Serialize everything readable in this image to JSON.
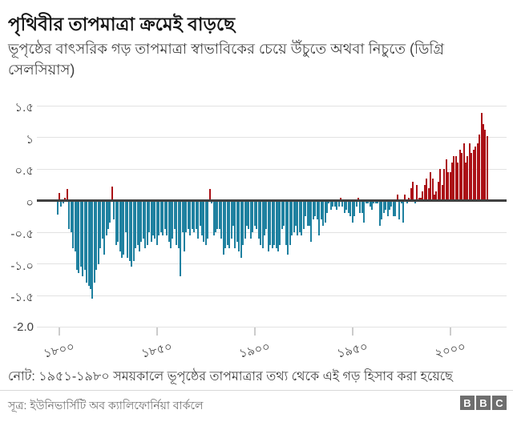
{
  "header": {
    "title": "পৃথিবীর তাপমাত্রা ক্রমেই বাড়ছে",
    "subtitle": "ভূপৃষ্ঠের বাৎসরিক গড় তাপমাত্রা স্বাভাবিকের চেয়ে উঁচুতে অথবা নিচুতে (ডিগ্রি সেলসিয়াস)"
  },
  "chart_data": {
    "type": "bar",
    "title": "পৃথিবীর তাপমাত্রা ক্রমেই বাড়ছে",
    "ylabel": "ডিগ্রি সেলসিয়াস",
    "xlabel": "",
    "ylim": [
      -2.0,
      1.5
    ],
    "xlim": [
      1797,
      2020
    ],
    "grid": true,
    "legend": false,
    "colors": {
      "positive": "#ab1016",
      "negative": "#1f81a0",
      "zero_line": "#404040",
      "gridline": "#e2e2e2"
    },
    "y_axis": {
      "ticks": [
        {
          "label": "১.৫",
          "value": 1.5
        },
        {
          "label": "১",
          "value": 1
        },
        {
          "label": "০.৫",
          "value": 0.5
        },
        {
          "label": "০",
          "value": 0
        },
        {
          "label": "-০.৫",
          "value": -0.5
        },
        {
          "label": "-১.০",
          "value": -1
        },
        {
          "label": "-১.৫",
          "value": -1.5
        },
        {
          "label": "-2.0",
          "value": -2
        }
      ]
    },
    "x_axis": {
      "ticks": [
        {
          "label": "১৮০০",
          "year": 1800
        },
        {
          "label": "১৮৫০",
          "year": 1850
        },
        {
          "label": "১৯০০",
          "year": 1900
        },
        {
          "label": "১৯৫০",
          "year": 1950
        },
        {
          "label": "২০০০",
          "year": 2000
        }
      ]
    },
    "series": [
      {
        "name": "annual-temperature-anomaly-c",
        "start_year": 1799,
        "end_year": 2019,
        "values": [
          -0.22,
          0.12,
          -0.1,
          -0.05,
          0.05,
          0.18,
          -0.45,
          -0.5,
          -0.75,
          -0.8,
          -1.1,
          -1.15,
          -1.05,
          -1.2,
          -1.1,
          -1.3,
          -1.35,
          -1.4,
          -1.55,
          -1.3,
          -1.1,
          -1.0,
          -0.75,
          -0.6,
          -0.85,
          -0.55,
          -0.45,
          -0.35,
          0.22,
          -0.3,
          -0.7,
          -0.65,
          -0.8,
          -0.9,
          -0.85,
          -0.5,
          -0.9,
          -0.95,
          -1.05,
          -0.95,
          -0.75,
          -0.7,
          -0.8,
          -0.65,
          -0.6,
          -0.75,
          -0.7,
          -0.5,
          -0.65,
          -0.55,
          -0.6,
          -0.7,
          -0.55,
          -0.5,
          -0.55,
          -0.45,
          -0.55,
          -0.65,
          -0.75,
          -0.6,
          -0.45,
          -0.7,
          -0.75,
          -1.2,
          -0.5,
          -0.8,
          -0.5,
          -0.45,
          -0.55,
          -0.45,
          -0.5,
          -0.45,
          -0.6,
          -0.4,
          -0.55,
          -0.65,
          -0.7,
          -0.6,
          0.18,
          -0.05,
          -0.55,
          -0.5,
          -0.45,
          -0.45,
          -0.6,
          -0.85,
          -0.75,
          -0.7,
          -0.75,
          -0.6,
          -0.4,
          -0.75,
          -0.65,
          -0.8,
          -0.9,
          -0.7,
          -0.6,
          -0.4,
          -0.45,
          -0.6,
          -0.5,
          -0.4,
          -0.45,
          -0.6,
          -0.7,
          -0.75,
          -0.55,
          -0.45,
          -0.8,
          -0.7,
          -0.75,
          -0.7,
          -0.75,
          -0.8,
          -0.7,
          -0.45,
          -0.4,
          -0.7,
          -0.85,
          -0.7,
          -0.55,
          -0.5,
          -0.4,
          -0.55,
          -0.5,
          -0.55,
          -0.45,
          -0.25,
          -0.4,
          -0.4,
          -0.65,
          -0.3,
          -0.25,
          -0.3,
          -0.55,
          -0.3,
          -0.4,
          -0.35,
          -0.2,
          -0.05,
          -0.15,
          -0.1,
          -0.1,
          -0.15,
          -0.1,
          0.05,
          -0.1,
          -0.2,
          -0.15,
          -0.2,
          -0.25,
          -0.35,
          -0.25,
          -0.1,
          0.05,
          -0.2,
          -0.2,
          -0.35,
          -0.05,
          -0.05,
          -0.1,
          -0.15,
          -0.05,
          -0.05,
          -0.05,
          -0.4,
          -0.3,
          -0.2,
          -0.15,
          -0.25,
          -0.15,
          -0.1,
          -0.25,
          -0.25,
          0.1,
          -0.3,
          -0.05,
          -0.35,
          0.1,
          -0.05,
          0.05,
          0.2,
          0.3,
          -0.05,
          0.25,
          0.05,
          0.05,
          0.15,
          0.25,
          0.35,
          0.2,
          0.45,
          0.35,
          0.1,
          0.15,
          0.3,
          0.5,
          0.25,
          0.5,
          0.65,
          0.45,
          0.45,
          0.6,
          0.7,
          0.7,
          0.6,
          0.8,
          0.75,
          0.9,
          0.6,
          0.7,
          0.9,
          0.75,
          0.8,
          0.85,
          0.9,
          1.05,
          1.38,
          1.21,
          1.12,
          1.02
        ]
      }
    ]
  },
  "footer": {
    "note": "নোট: ১৯৫১-১৯৮০ সময়কালে ভূপৃষ্ঠের তাপমাত্রার তথ্য থেকে এই গড় হিসাব করা হয়েছে",
    "source": "সূত্র: ইউনিভার্সিটি অব ক্যালিফোর্নিয়া বার্কলে",
    "logo": [
      "B",
      "B",
      "C"
    ]
  }
}
